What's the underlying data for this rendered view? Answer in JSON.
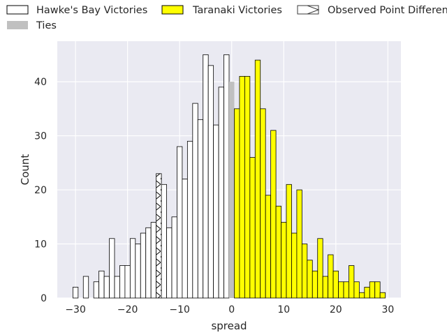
{
  "chart_data": {
    "type": "bar",
    "xlabel": "spread",
    "ylabel": "Count",
    "xlim": [
      -33.5,
      32.5
    ],
    "ylim": [
      0,
      47.5
    ],
    "xticks": [
      -30,
      -20,
      -10,
      0,
      10,
      20,
      30
    ],
    "yticks": [
      0,
      10,
      20,
      30,
      40
    ],
    "grid": true,
    "legend_placement": "top",
    "legend": [
      {
        "label": "Hawke's Bay Victories",
        "style": "white-fill-black-edge"
      },
      {
        "label": "Taranaki Victories",
        "style": "yellow-fill-black-edge"
      },
      {
        "label": "Observed Point Difference",
        "style": "hatched"
      },
      {
        "label": "Ties",
        "style": "grey-fill"
      }
    ],
    "observed_point_difference": -14,
    "colors": {
      "background": "#eaeaf2",
      "grid": "#ffffff",
      "hawkes_bay": "#ffffff",
      "taranaki": "#ffff00",
      "ties": "#c0c0c0",
      "edge": "#000000"
    },
    "series": [
      {
        "name": "Hawke's Bay Victories",
        "x": [
          -30,
          -28,
          -26,
          -25,
          -24,
          -23,
          -22,
          -21,
          -20,
          -19,
          -18,
          -17,
          -16,
          -15,
          -13,
          -12,
          -11,
          -10,
          -9,
          -8,
          -7,
          -6,
          -5,
          -4,
          -3,
          -2,
          -1
        ],
        "values": [
          2,
          4,
          3,
          5,
          4,
          11,
          4,
          6,
          6,
          11,
          10,
          12,
          13,
          14,
          21,
          13,
          15,
          28,
          22,
          29,
          36,
          33,
          45,
          43,
          32,
          39,
          45
        ]
      },
      {
        "name": "Observed Point Difference",
        "x": [
          -14
        ],
        "values": [
          23
        ]
      },
      {
        "name": "Ties",
        "x": [
          0
        ],
        "values": [
          40
        ]
      },
      {
        "name": "Taranaki Victories",
        "x": [
          1,
          2,
          3,
          4,
          5,
          6,
          7,
          8,
          9,
          10,
          11,
          12,
          13,
          14,
          15,
          16,
          17,
          18,
          19,
          20,
          21,
          22,
          23,
          24,
          25,
          26,
          27,
          28,
          29
        ],
        "values": [
          35,
          41,
          41,
          26,
          44,
          35,
          19,
          31,
          17,
          14,
          21,
          12,
          20,
          10,
          7,
          5,
          11,
          4,
          8,
          5,
          3,
          3,
          6,
          3,
          1,
          2,
          3,
          3,
          1
        ]
      }
    ]
  }
}
